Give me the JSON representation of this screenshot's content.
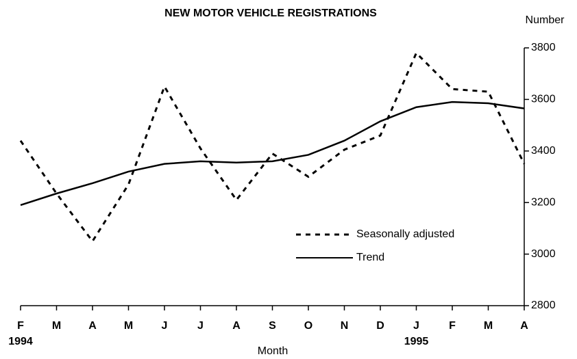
{
  "chart_data": {
    "type": "line",
    "title": "NEW MOTOR VEHICLE REGISTRATIONS",
    "y_axis_label": "Number",
    "x_axis_label": "Month",
    "categories": [
      "F",
      "M",
      "A",
      "M",
      "J",
      "J",
      "A",
      "S",
      "O",
      "N",
      "D",
      "J",
      "F",
      "M",
      "A"
    ],
    "year_labels": [
      "1994",
      null,
      null,
      null,
      null,
      null,
      null,
      null,
      null,
      null,
      null,
      "1995",
      null,
      null,
      null
    ],
    "series": [
      {
        "name": "Seasonally adjusted",
        "color": "#000000",
        "dash": true,
        "values": [
          3440,
          3235,
          3050,
          3270,
          3650,
          3410,
          3210,
          3390,
          3300,
          3405,
          3460,
          3780,
          3640,
          3630,
          3350
        ]
      },
      {
        "name": "Trend",
        "color": "#000000",
        "dash": false,
        "values": [
          3190,
          3235,
          3275,
          3320,
          3350,
          3360,
          3355,
          3360,
          3385,
          3440,
          3515,
          3570,
          3590,
          3585,
          3565
        ]
      }
    ],
    "ylim": [
      2800,
      3800
    ],
    "yticks": [
      2800,
      3000,
      3200,
      3400,
      3600,
      3800
    ],
    "y_axis_side": "right",
    "grid": false
  }
}
